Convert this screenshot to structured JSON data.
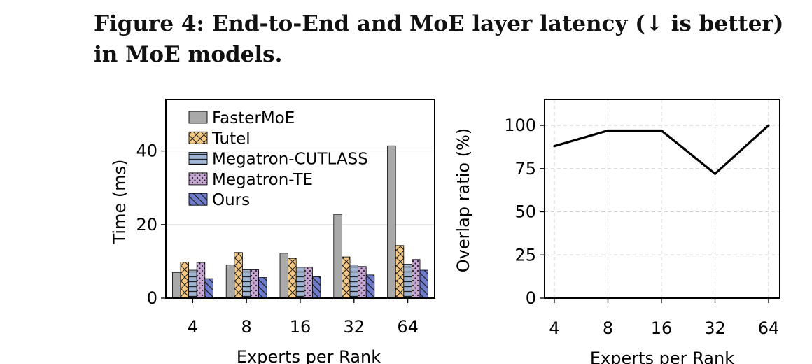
{
  "caption": "Figure 4: End-to-End and MoE layer latency (↓ is better) in MoE models.",
  "chart_data": [
    {
      "type": "bar",
      "xlabel": "Experts per Rank",
      "ylabel": "Time (ms)",
      "categories": [
        "4",
        "8",
        "16",
        "32",
        "64"
      ],
      "ylim": [
        0,
        54
      ],
      "yticks": [
        0,
        20,
        40
      ],
      "grid": "y",
      "legend_position": "upper-left",
      "series": [
        {
          "name": "FasterMoE",
          "values": [
            7.0,
            9.0,
            12.2,
            22.8,
            41.4
          ],
          "color": "#a9a9a9",
          "hatch": "none"
        },
        {
          "name": "Tutel",
          "values": [
            9.8,
            12.4,
            10.8,
            11.2,
            14.3
          ],
          "color": "#f5c983",
          "hatch": "crosshatch"
        },
        {
          "name": "Megatron-CUTLASS",
          "values": [
            7.6,
            7.7,
            8.4,
            9.0,
            9.2
          ],
          "color": "#9fb4d1",
          "hatch": "horizontal"
        },
        {
          "name": "Megatron-TE",
          "values": [
            9.7,
            7.7,
            8.4,
            8.6,
            10.5
          ],
          "color": "#c6a6d3",
          "hatch": "dots"
        },
        {
          "name": "Ours",
          "values": [
            5.3,
            5.6,
            5.8,
            6.3,
            7.6
          ],
          "color": "#6e7ccb",
          "hatch": "diagonal"
        }
      ]
    },
    {
      "type": "line",
      "xlabel": "Experts per Rank",
      "ylabel": "Overlap ratio (%)",
      "x": [
        "4",
        "8",
        "16",
        "32",
        "64"
      ],
      "ylim": [
        0,
        115
      ],
      "yticks": [
        0,
        25,
        50,
        75,
        100
      ],
      "grid": "both-dashed",
      "series": [
        {
          "values": [
            88,
            97,
            97,
            72,
            100
          ],
          "color": "#000000"
        }
      ]
    }
  ]
}
